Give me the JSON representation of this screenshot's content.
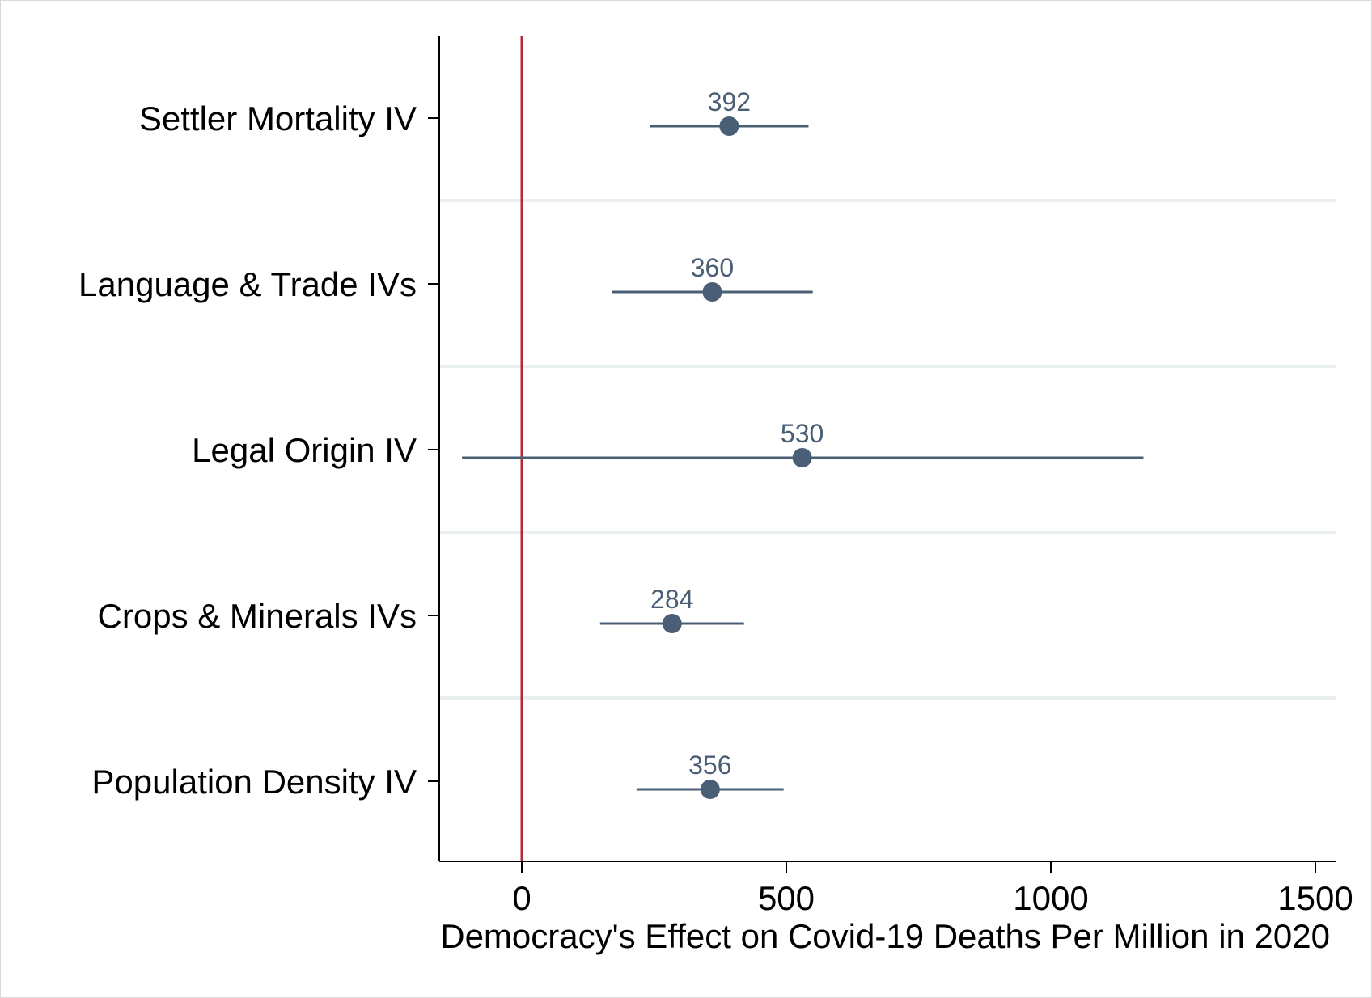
{
  "chart_data": {
    "type": "scatter",
    "subtype": "coefficient-plot",
    "title": "",
    "xlabel": "Democracy's Effect on Covid-19 Deaths Per Million in 2020",
    "ylabel": "",
    "xlim": [
      -155,
      1540
    ],
    "xticks": [
      0,
      500,
      1000,
      1500
    ],
    "xtick_labels": [
      "0",
      "500",
      "1000",
      "1500"
    ],
    "reference_line": {
      "x": 0,
      "color": "#b32a3b"
    },
    "grid": "horizontal separators between categories",
    "legend": "none",
    "series_color": "#4a5f75",
    "categories": [
      "Settler Mortality IV",
      "Language & Trade IVs",
      "Legal Origin IV",
      "Crops & Minerals IVs",
      "Population Density IV"
    ],
    "points": [
      {
        "label": "392",
        "estimate": 392,
        "ci_low": 242,
        "ci_high": 542
      },
      {
        "label": "360",
        "estimate": 360,
        "ci_low": 170,
        "ci_high": 550
      },
      {
        "label": "530",
        "estimate": 530,
        "ci_low": -113,
        "ci_high": 1175
      },
      {
        "label": "284",
        "estimate": 284,
        "ci_low": 148,
        "ci_high": 420
      },
      {
        "label": "356",
        "estimate": 356,
        "ci_low": 217,
        "ci_high": 495
      }
    ]
  }
}
